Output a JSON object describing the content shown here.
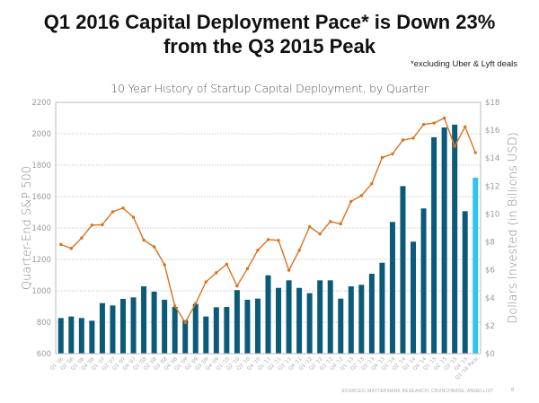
{
  "header": {
    "title_line1": "Q1 2016 Capital Deployment Pace* is Down 23%",
    "title_line2": "from the Q3 2015 Peak",
    "footnote": "*excluding Uber & Lyft deals"
  },
  "footer": {
    "sources": "SOURCES: MATTERMARK RESEARCH, CRUNCHBASE, ANGELLIST",
    "page_number": "8"
  },
  "colors": {
    "bar": "#0b5a78",
    "bar_pace": "#2ec3f0",
    "line": "#d9731f",
    "grid": "#bbbbbb",
    "frame": "#bbbbbb"
  },
  "chart_data": {
    "type": "bar+line",
    "title": "10 Year History of Startup Capital Deployment, by Quarter",
    "categories": [
      "Q1 '06",
      "Q2 '06",
      "Q3 '06",
      "Q4 '06",
      "Q1 '07",
      "Q2 '07",
      "Q3 '07",
      "Q4 '07",
      "Q1 '08",
      "Q2 '08",
      "Q3 '08",
      "Q4 '08",
      "Q1 '09",
      "Q2 '09",
      "Q3 '09",
      "Q4 '09",
      "Q1 '10",
      "Q2 '10",
      "Q3 '10",
      "Q4 '10",
      "Q1 '11",
      "Q2 '11",
      "Q3 '11",
      "Q4 '11",
      "Q1 '12",
      "Q2 '12",
      "Q3 '12",
      "Q4 '12",
      "Q1 '13",
      "Q2 '13",
      "Q3 '13",
      "Q4 '13",
      "Q1 '14",
      "Q2 '14",
      "Q3 '14",
      "Q4 '14",
      "Q1 '15",
      "Q2 '15",
      "Q3 '15",
      "Q4 '15",
      "Q1 '16 Pace"
    ],
    "series": [
      {
        "name": "Dollars Invested (in Billions USD)",
        "type": "bar",
        "axis": "right",
        "values": [
          2.55,
          2.66,
          2.55,
          2.36,
          3.62,
          3.45,
          3.92,
          4.03,
          4.82,
          4.44,
          3.86,
          3.34,
          2.4,
          3.56,
          2.66,
          3.32,
          3.34,
          4.55,
          3.86,
          3.94,
          5.61,
          4.71,
          5.25,
          4.71,
          4.33,
          5.25,
          5.25,
          3.94,
          4.82,
          4.93,
          5.72,
          6.51,
          9.43,
          12.0,
          8.02,
          10.4,
          15.5,
          16.2,
          16.4,
          10.2,
          12.6
        ],
        "highlight_last": true
      },
      {
        "name": "Quarter-End S&P 500",
        "type": "line",
        "axis": "left",
        "values": [
          1295,
          1270,
          1336,
          1418,
          1421,
          1503,
          1527,
          1468,
          1323,
          1280,
          1166,
          903,
          798,
          919,
          1057,
          1115,
          1169,
          1031,
          1141,
          1258,
          1326,
          1321,
          1131,
          1258,
          1408,
          1362,
          1441,
          1426,
          1569,
          1606,
          1682,
          1848,
          1872,
          1960,
          1972,
          2059,
          2068,
          2100,
          1920,
          2044,
          1880
        ]
      }
    ],
    "left_axis": {
      "label": "Quarter-End S&P 500",
      "range": [
        600,
        2200
      ],
      "ticks": [
        "2200",
        "2000",
        "1800",
        "1600",
        "1400",
        "1200",
        "1000",
        "800",
        "600"
      ]
    },
    "right_axis": {
      "label": "Dollars Invested (in Billions USD)",
      "range": [
        0,
        18
      ],
      "ticks": [
        "$18",
        "$16",
        "$14",
        "$12",
        "$10",
        "$8",
        "$6",
        "$4",
        "$2",
        "$0"
      ]
    },
    "grid": true,
    "legend": "none"
  }
}
